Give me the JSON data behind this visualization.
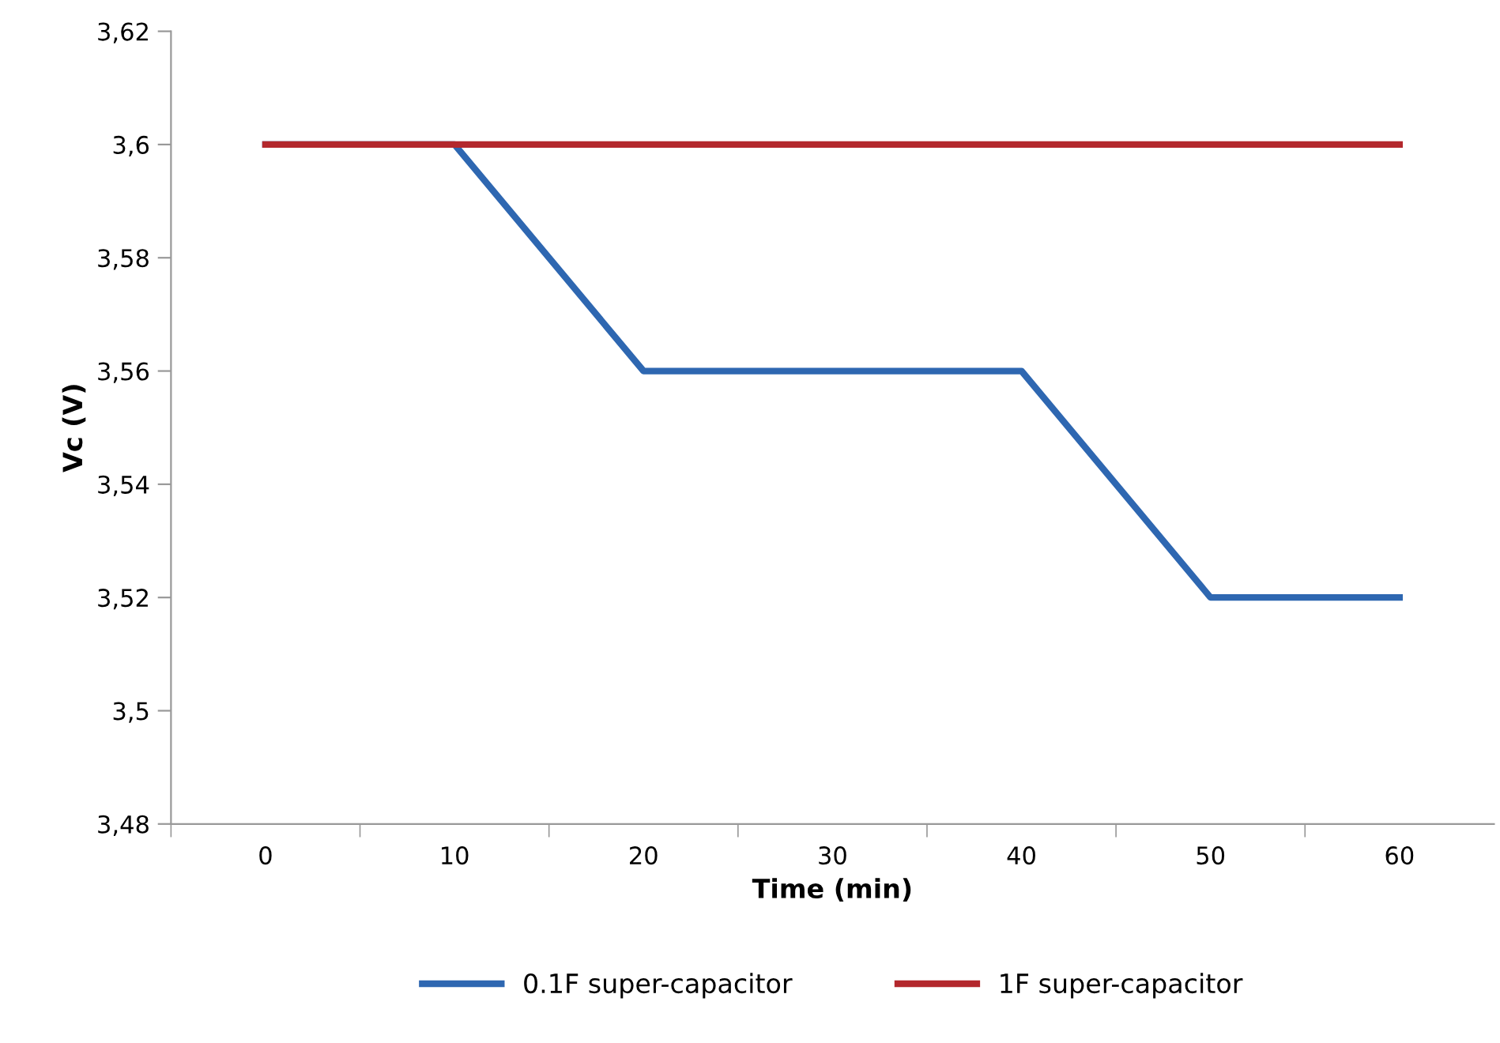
{
  "chart_data": {
    "type": "line",
    "xlabel": "Time (min)",
    "ylabel": "Vc (V)",
    "categories": [
      "0",
      "10",
      "20",
      "30",
      "40",
      "50",
      "60"
    ],
    "series": [
      {
        "name": "0.1F super-capacitor",
        "color": "#2e67b1",
        "values": [
          3.6,
          3.6,
          3.56,
          3.56,
          3.56,
          3.52,
          3.52
        ]
      },
      {
        "name": "1F super-capacitor",
        "color": "#b3282d",
        "values": [
          3.6,
          3.6,
          3.6,
          3.6,
          3.6,
          3.6,
          3.6
        ]
      }
    ],
    "ylim": [
      3.48,
      3.62
    ],
    "yticks": [
      {
        "value": 3.48,
        "label": "3,48"
      },
      {
        "value": 3.5,
        "label": "3,5"
      },
      {
        "value": 3.52,
        "label": "3,52"
      },
      {
        "value": 3.54,
        "label": "3,54"
      },
      {
        "value": 3.56,
        "label": "3,56"
      },
      {
        "value": 3.58,
        "label": "3,58"
      },
      {
        "value": 3.6,
        "label": "3,6"
      },
      {
        "value": 3.62,
        "label": "3,62"
      }
    ],
    "grid": false,
    "legend": "bottom",
    "marker": "none",
    "line_style": "solid"
  }
}
